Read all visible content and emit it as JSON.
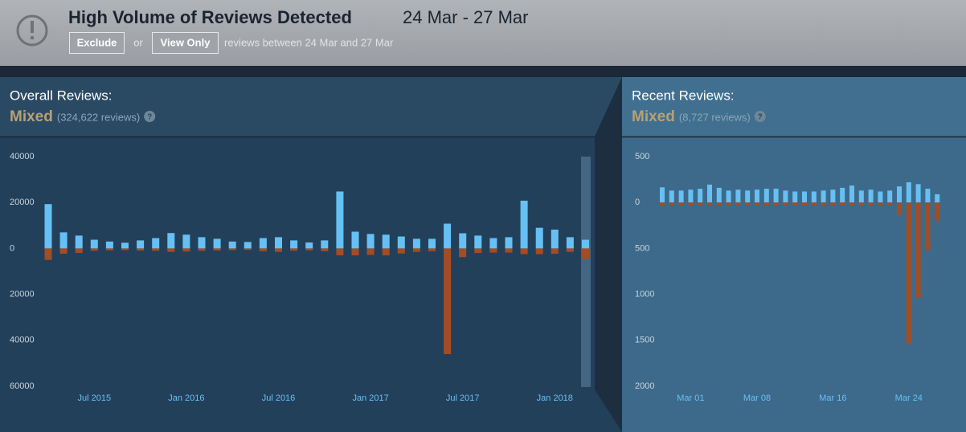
{
  "header": {
    "title": "High Volume of Reviews Detected",
    "date_range": "24 Mar - 27 Mar",
    "exclude": "Exclude",
    "or": "or",
    "view_only": "View Only",
    "note": "reviews between 24 Mar and 27 Mar"
  },
  "panels": [
    {
      "label": "Overall Reviews:",
      "rating": "Mixed",
      "count": "(324,622 reviews)",
      "help": "?"
    },
    {
      "label": "Recent Reviews:",
      "rating": "Mixed",
      "count": "(8,727 reviews)",
      "help": "?"
    }
  ],
  "chart_data": [
    {
      "type": "bar",
      "categories": [
        null,
        null,
        null,
        "Jul 2015",
        null,
        null,
        null,
        null,
        null,
        "Jan 2016",
        null,
        null,
        null,
        null,
        null,
        "Jul 2016",
        null,
        null,
        null,
        null,
        null,
        "Jan 2017",
        null,
        null,
        null,
        null,
        null,
        "Jul 2017",
        null,
        null,
        null,
        null,
        null,
        "Jan 2018",
        null,
        null
      ],
      "series": [
        {
          "color": "#66c0f4",
          "values": [
            19300,
            7000,
            5600,
            3800,
            3000,
            2500,
            3500,
            4500,
            6700,
            6000,
            4900,
            4200,
            3000,
            2800,
            4500,
            4900,
            3500,
            2600,
            3500,
            24800,
            7300,
            6300,
            6000,
            5200,
            4200,
            4200,
            10800,
            6600,
            5600,
            4500,
            4900,
            20800,
            9000,
            8200,
            4900,
            3800
          ]
        },
        {
          "color": "#a34c25",
          "values": [
            -5000,
            -2300,
            -2000,
            -1000,
            -800,
            -700,
            -900,
            -1000,
            -1500,
            -1300,
            -1000,
            -900,
            -700,
            -600,
            -1200,
            -1500,
            -1000,
            -800,
            -1200,
            -3000,
            -3000,
            -2800,
            -3000,
            -2200,
            -1500,
            -1200,
            -46000,
            -3800,
            -2000,
            -1800,
            -1800,
            -2500,
            -2500,
            -2300,
            -1500,
            -4500
          ]
        }
      ],
      "ylim": [
        -60000,
        40000
      ],
      "yticks": [
        40000,
        20000,
        0,
        {
          "value": -20000,
          "label": "20000"
        },
        {
          "value": -40000,
          "label": "40000"
        },
        {
          "value": -60000,
          "label": "60000"
        }
      ]
    },
    {
      "type": "bar",
      "categories": [
        null,
        null,
        null,
        "Mar 01",
        null,
        null,
        null,
        null,
        null,
        null,
        "Mar 08",
        null,
        null,
        null,
        null,
        null,
        null,
        null,
        "Mar 16",
        null,
        null,
        null,
        null,
        null,
        null,
        null,
        "Mar 24",
        null,
        null,
        null
      ],
      "series": [
        {
          "color": "#66c0f4",
          "values": [
            165,
            130,
            130,
            140,
            150,
            195,
            160,
            130,
            140,
            130,
            140,
            150,
            150,
            130,
            120,
            120,
            120,
            130,
            140,
            160,
            185,
            130,
            140,
            120,
            130,
            175,
            220,
            200,
            150,
            90
          ]
        },
        {
          "color": "#a34c25",
          "values": [
            -35,
            -35,
            -35,
            -35,
            -35,
            -35,
            -35,
            -35,
            -35,
            -35,
            -35,
            -35,
            -35,
            -35,
            -35,
            -35,
            -35,
            -35,
            -35,
            -35,
            -35,
            -35,
            -35,
            -35,
            -35,
            -140,
            -1540,
            -1035,
            -525,
            -200
          ]
        }
      ],
      "ylim": [
        -2000,
        500
      ],
      "yticks": [
        500,
        0,
        {
          "value": -500,
          "label": "500"
        },
        {
          "value": -1000,
          "label": "1000"
        },
        {
          "value": -1500,
          "label": "1500"
        },
        {
          "value": -2000,
          "label": "2000"
        }
      ]
    }
  ]
}
